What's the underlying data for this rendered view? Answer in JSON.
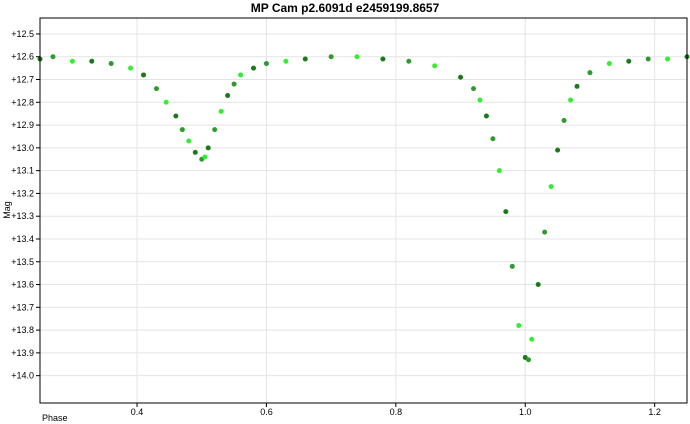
{
  "chart_data": {
    "type": "scatter",
    "title": "MP Cam p2.6091d e2459199.8657",
    "xlabel": "Phase",
    "ylabel": "Mag",
    "xlim": [
      0.25,
      1.25
    ],
    "ylim": [
      12.43,
      14.12
    ],
    "y_inverted": true,
    "grid": true,
    "x_ticks": [
      0.4,
      0.6,
      0.8,
      1.0,
      1.2
    ],
    "x_tick_labels": [
      "0.4",
      "0.6",
      "0.8",
      "1.0",
      "1.2"
    ],
    "y_ticks": [
      12.5,
      12.6,
      12.7,
      12.8,
      12.9,
      13.0,
      13.1,
      13.2,
      13.3,
      13.4,
      13.5,
      13.6,
      13.7,
      13.8,
      13.9,
      14.0
    ],
    "y_tick_labels": [
      "+12.5",
      "+12.6",
      "+12.7",
      "+12.8",
      "+12.9",
      "+13.0",
      "+13.1",
      "+13.2",
      "+13.3",
      "+13.4",
      "+13.5",
      "+13.6",
      "+13.7",
      "+13.8",
      "+13.9",
      "+14.0"
    ],
    "colors": {
      "series_dark": "#1a7a1a",
      "series_mid": "#2f9a2f",
      "series_bright": "#33ee33",
      "grid": "#e4e4e4",
      "axis": "#000000"
    },
    "series": [
      {
        "x": [
          0.25,
          0.27,
          0.3,
          0.33,
          0.36,
          0.39,
          0.41,
          0.43,
          0.445,
          0.46,
          0.47,
          0.48,
          0.49,
          0.5,
          0.505,
          0.51,
          0.52,
          0.53,
          0.54,
          0.55,
          0.56,
          0.58,
          0.6,
          0.63,
          0.66,
          0.7,
          0.74,
          0.78,
          0.82,
          0.86,
          0.9,
          0.92,
          0.93,
          0.94,
          0.95,
          0.96,
          0.97,
          0.98,
          0.99,
          1.0,
          1.005,
          1.01,
          1.02,
          1.03,
          1.04,
          1.05,
          1.06,
          1.07,
          1.08,
          1.1,
          1.13,
          1.16,
          1.19,
          1.22,
          1.25
        ],
        "y": [
          12.61,
          12.6,
          12.62,
          12.62,
          12.63,
          12.65,
          12.68,
          12.74,
          12.8,
          12.86,
          12.92,
          12.97,
          13.02,
          13.05,
          13.04,
          13.0,
          12.92,
          12.84,
          12.77,
          12.72,
          12.68,
          12.65,
          12.63,
          12.62,
          12.61,
          12.6,
          12.6,
          12.61,
          12.62,
          12.64,
          12.69,
          12.74,
          12.79,
          12.86,
          12.96,
          13.1,
          13.28,
          13.52,
          13.78,
          13.92,
          13.93,
          13.84,
          13.6,
          13.37,
          13.17,
          13.01,
          12.88,
          12.79,
          12.73,
          12.67,
          12.63,
          12.62,
          12.61,
          12.61,
          12.6
        ]
      }
    ]
  }
}
